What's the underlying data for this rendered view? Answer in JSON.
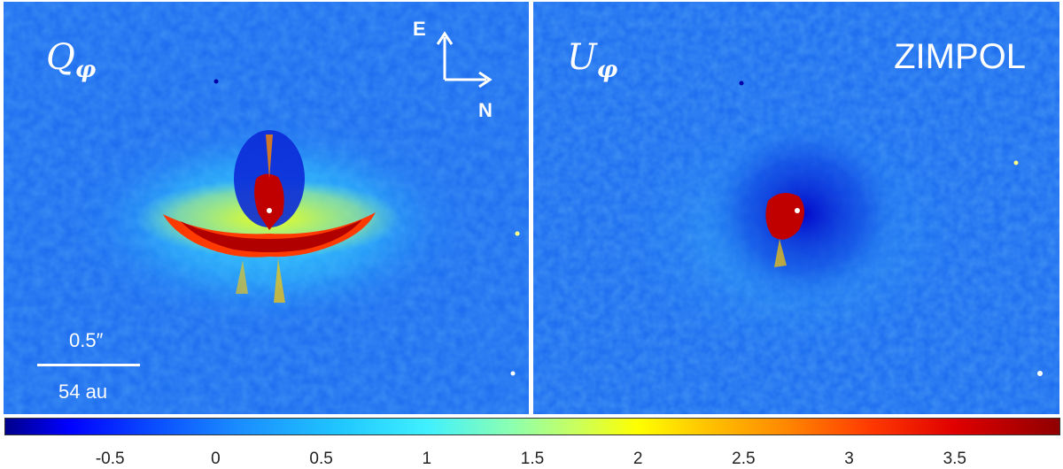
{
  "panels": {
    "left": {
      "label_main": "Q",
      "label_sub": "φ"
    },
    "right": {
      "label_main": "U",
      "label_sub": "φ",
      "instrument": "ZIMPOL"
    }
  },
  "compass": {
    "east": "E",
    "north": "N"
  },
  "scalebar": {
    "angular": "0.5″",
    "physical": "54 au"
  },
  "colorbar": {
    "ticks": [
      "-0.5",
      "0",
      "0.5",
      "1",
      "1.5",
      "2",
      "2.5",
      "3",
      "3.5"
    ],
    "colors": [
      "#00008b",
      "#0000ff",
      "#1a8cff",
      "#40f0ff",
      "#ffff00",
      "#ff8800",
      "#e00000",
      "#900000"
    ]
  }
}
